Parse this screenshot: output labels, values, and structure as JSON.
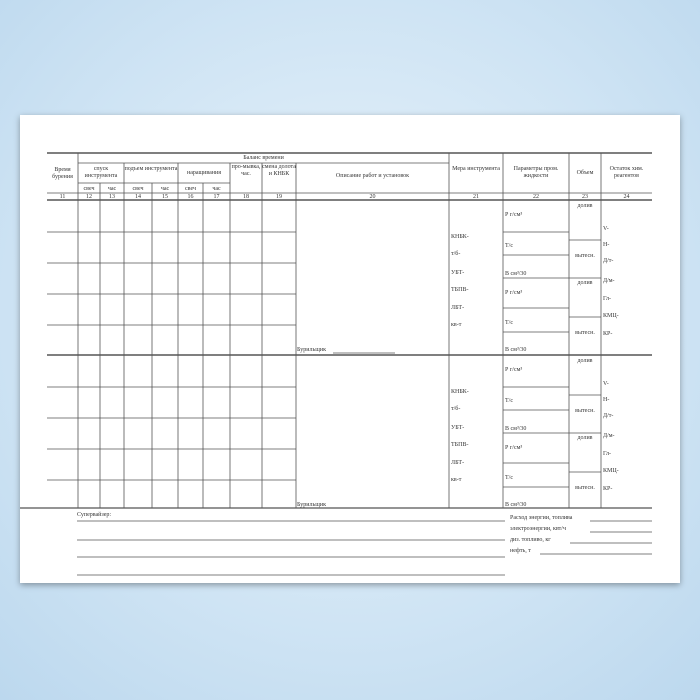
{
  "header": {
    "balance": "Баланс времени",
    "drill_time": "Время бурения",
    "trip_in": "спуск инструмента",
    "trip_out": "подъем инструмента",
    "make_up": "наращивания",
    "flush": "про-мывка, час.",
    "bit_change": "смена долота и КНБК",
    "description": "Описание работ и установок",
    "tool_measure": "Мера инструмента",
    "fluid_params": "Параметры пром. жидкости",
    "volume": "Объем",
    "chem_rest": "Остаток хим. реагентов",
    "candles": "свеч",
    "hours": "час",
    "numbers": [
      "11",
      "12",
      "13",
      "14",
      "15",
      "16",
      "17",
      "18",
      "19",
      "20",
      "21",
      "22",
      "23",
      "24"
    ]
  },
  "block": {
    "driller": "Бурильщик",
    "tools": [
      "КНБК-",
      "т/б-",
      "УБТ-",
      "ТБПВ-",
      "ЛБТ-",
      "кв-т"
    ],
    "params": [
      "Р г/см³",
      "Т/с",
      "В см³/30"
    ],
    "topup": "долив",
    "displace": "вытесн.",
    "reagents": [
      "V-",
      "Н-",
      "Д/т-",
      "Д/м-",
      "Гл-",
      "КМЦ-",
      "КР-"
    ]
  },
  "footer": {
    "supervisor": "Супервайзер:",
    "energy": "Расход энергии, топлива",
    "electric": "электроэнергии, квт/ч",
    "diesel": "диз. топливо, кг",
    "oil": "нефть, т"
  }
}
